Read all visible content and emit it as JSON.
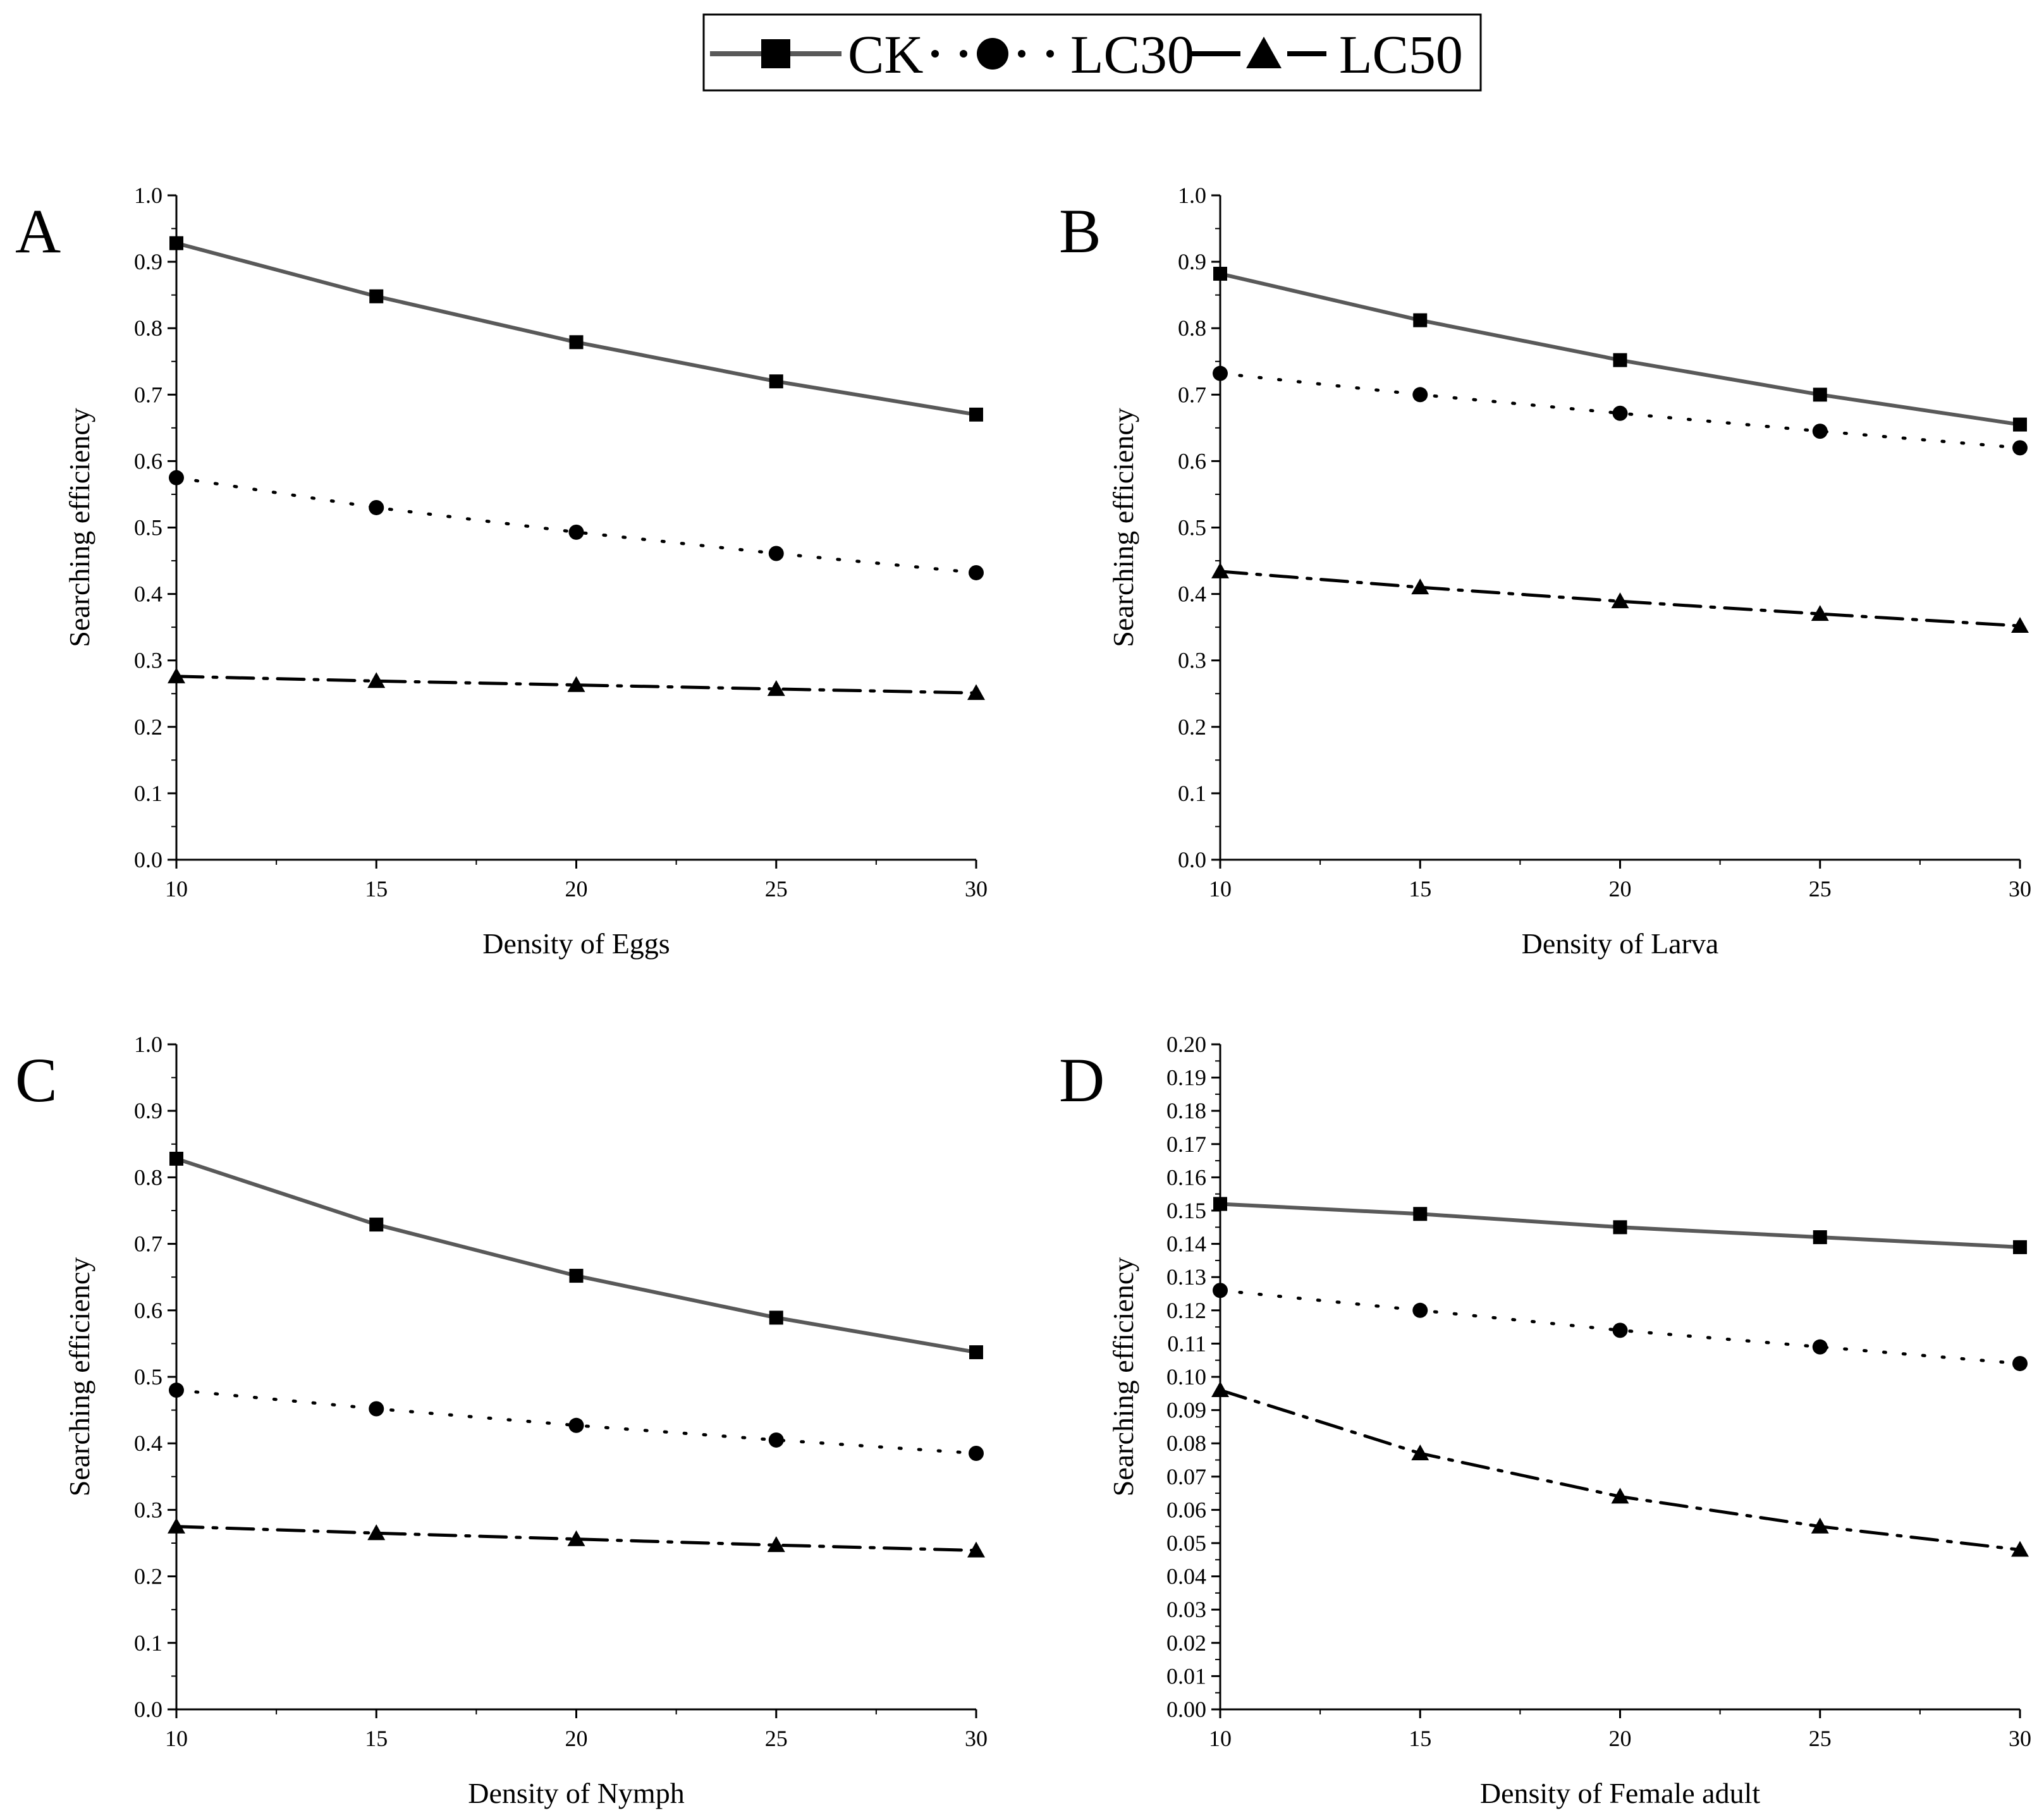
{
  "legend": {
    "entries": [
      {
        "name": "CK",
        "marker": "square-marker",
        "line": "solid"
      },
      {
        "name": "LC30",
        "marker": "circle-marker",
        "line": "dotted"
      },
      {
        "name": "LC50",
        "marker": "triangle-marker",
        "line": "dash-dot"
      }
    ]
  },
  "colors": {
    "ck": "#595959",
    "lc30": "#000000",
    "lc50": "#000000",
    "axis": "#000000"
  },
  "chart_data": [
    {
      "type": "line",
      "panel": "A",
      "xlabel": "Density of Eggs",
      "ylabel": "Searching efficiency",
      "x": [
        10,
        15,
        20,
        25,
        30
      ],
      "xlim": [
        10,
        30
      ],
      "ylim": [
        0,
        1.0
      ],
      "ystep": 0.1,
      "ydecimals": 1,
      "series": [
        {
          "name": "CK",
          "values": [
            0.928,
            0.848,
            0.779,
            0.72,
            0.67
          ]
        },
        {
          "name": "LC30",
          "values": [
            0.575,
            0.53,
            0.493,
            0.461,
            0.432
          ]
        },
        {
          "name": "LC50",
          "values": [
            0.276,
            0.269,
            0.263,
            0.257,
            0.251
          ]
        }
      ]
    },
    {
      "type": "line",
      "panel": "B",
      "xlabel": "Density of Larva",
      "ylabel": "Searching efficiency",
      "x": [
        10,
        15,
        20,
        25,
        30
      ],
      "xlim": [
        10,
        30
      ],
      "ylim": [
        0,
        1.0
      ],
      "ystep": 0.1,
      "ydecimals": 1,
      "series": [
        {
          "name": "CK",
          "values": [
            0.882,
            0.812,
            0.752,
            0.7,
            0.655
          ]
        },
        {
          "name": "LC30",
          "values": [
            0.732,
            0.7,
            0.672,
            0.645,
            0.62
          ]
        },
        {
          "name": "LC50",
          "values": [
            0.434,
            0.41,
            0.389,
            0.37,
            0.352
          ]
        }
      ]
    },
    {
      "type": "line",
      "panel": "C",
      "xlabel": "Density of Nymph",
      "ylabel": "Searching efficiency",
      "x": [
        10,
        15,
        20,
        25,
        30
      ],
      "xlim": [
        10,
        30
      ],
      "ylim": [
        0,
        1.0
      ],
      "ystep": 0.1,
      "ydecimals": 1,
      "series": [
        {
          "name": "CK",
          "values": [
            0.828,
            0.729,
            0.652,
            0.589,
            0.537
          ]
        },
        {
          "name": "LC30",
          "values": [
            0.48,
            0.452,
            0.427,
            0.405,
            0.385
          ]
        },
        {
          "name": "LC50",
          "values": [
            0.275,
            0.265,
            0.256,
            0.247,
            0.239
          ]
        }
      ]
    },
    {
      "type": "line",
      "panel": "D",
      "xlabel": "Density of Female adult",
      "ylabel": "Searching efficiency",
      "x": [
        10,
        15,
        20,
        25,
        30
      ],
      "xlim": [
        10,
        30
      ],
      "ylim": [
        0,
        0.2
      ],
      "ystep": 0.01,
      "ydecimals": 2,
      "series": [
        {
          "name": "CK",
          "values": [
            0.152,
            0.149,
            0.145,
            0.142,
            0.139
          ]
        },
        {
          "name": "LC30",
          "values": [
            0.126,
            0.12,
            0.114,
            0.109,
            0.104
          ]
        },
        {
          "name": "LC50",
          "values": [
            0.096,
            0.077,
            0.064,
            0.055,
            0.048
          ]
        }
      ]
    }
  ]
}
